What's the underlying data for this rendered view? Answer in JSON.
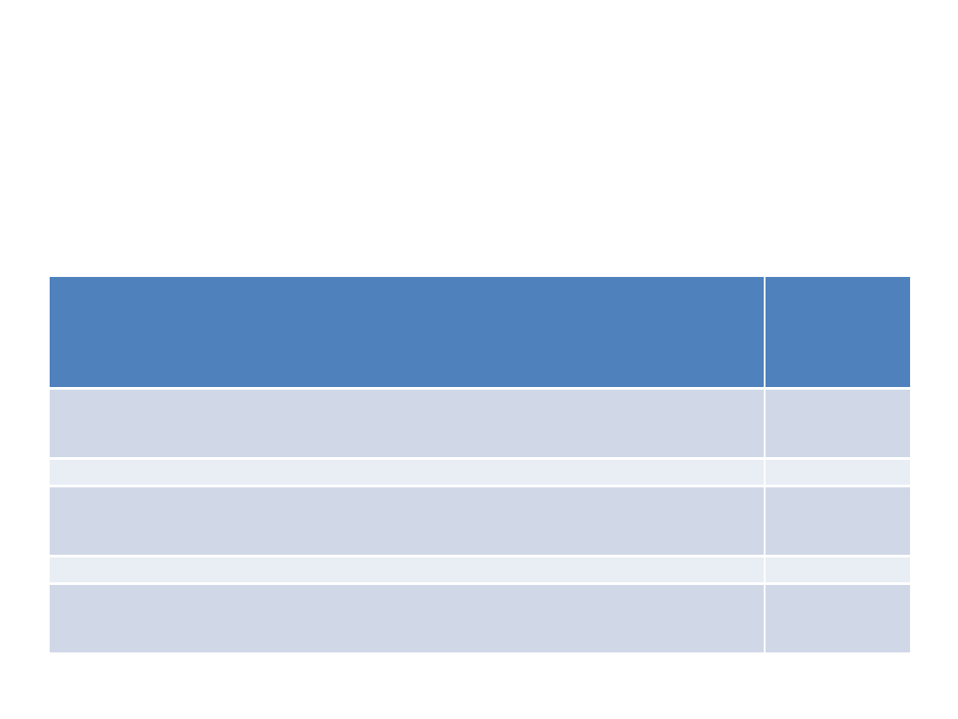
{
  "slide": {
    "table": {
      "colors": {
        "header": "#4f81bd",
        "band_dark": "#d0d8e8",
        "band_light": "#e9edf4",
        "grid": "#ffffff"
      },
      "header": [
        "",
        ""
      ],
      "rows": [
        [
          "",
          ""
        ],
        [
          "",
          ""
        ],
        [
          "",
          ""
        ],
        [
          "",
          ""
        ],
        [
          "",
          ""
        ]
      ]
    }
  }
}
